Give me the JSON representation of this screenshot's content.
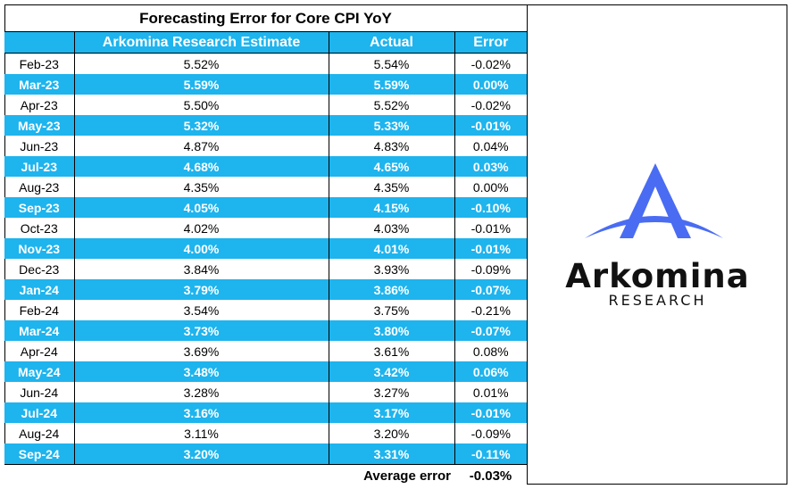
{
  "title": "Forecasting Error for Core CPI YoY",
  "columns": {
    "date": "",
    "estimate": "Arkomina Research Estimate",
    "actual": "Actual",
    "error": "Error"
  },
  "summary": {
    "label": "Average error",
    "value": "-0.03%"
  },
  "brand": {
    "name": "Arkomina",
    "sub": "RESEARCH"
  },
  "colors": {
    "highlight": "#1eb4ee",
    "logo_blue": "#4a6cf3"
  },
  "chart_data": {
    "type": "table",
    "title": "Forecasting Error for Core CPI YoY",
    "headers": [
      "",
      "Arkomina Research Estimate",
      "Actual",
      "Error"
    ],
    "rows": [
      [
        "Feb-23",
        "5.52%",
        "5.54%",
        "-0.02%"
      ],
      [
        "Mar-23",
        "5.59%",
        "5.59%",
        "0.00%"
      ],
      [
        "Apr-23",
        "5.50%",
        "5.52%",
        "-0.02%"
      ],
      [
        "May-23",
        "5.32%",
        "5.33%",
        "-0.01%"
      ],
      [
        "Jun-23",
        "4.87%",
        "4.83%",
        "0.04%"
      ],
      [
        "Jul-23",
        "4.68%",
        "4.65%",
        "0.03%"
      ],
      [
        "Aug-23",
        "4.35%",
        "4.35%",
        "0.00%"
      ],
      [
        "Sep-23",
        "4.05%",
        "4.15%",
        "-0.10%"
      ],
      [
        "Oct-23",
        "4.02%",
        "4.03%",
        "-0.01%"
      ],
      [
        "Nov-23",
        "4.00%",
        "4.01%",
        "-0.01%"
      ],
      [
        "Dec-23",
        "3.84%",
        "3.93%",
        "-0.09%"
      ],
      [
        "Jan-24",
        "3.79%",
        "3.86%",
        "-0.07%"
      ],
      [
        "Feb-24",
        "3.54%",
        "3.75%",
        "-0.21%"
      ],
      [
        "Mar-24",
        "3.73%",
        "3.80%",
        "-0.07%"
      ],
      [
        "Apr-24",
        "3.69%",
        "3.61%",
        "0.08%"
      ],
      [
        "May-24",
        "3.48%",
        "3.42%",
        "0.06%"
      ],
      [
        "Jun-24",
        "3.28%",
        "3.27%",
        "0.01%"
      ],
      [
        "Jul-24",
        "3.16%",
        "3.17%",
        "-0.01%"
      ],
      [
        "Aug-24",
        "3.11%",
        "3.20%",
        "-0.09%"
      ],
      [
        "Sep-24",
        "3.20%",
        "3.31%",
        "-0.11%"
      ]
    ]
  }
}
